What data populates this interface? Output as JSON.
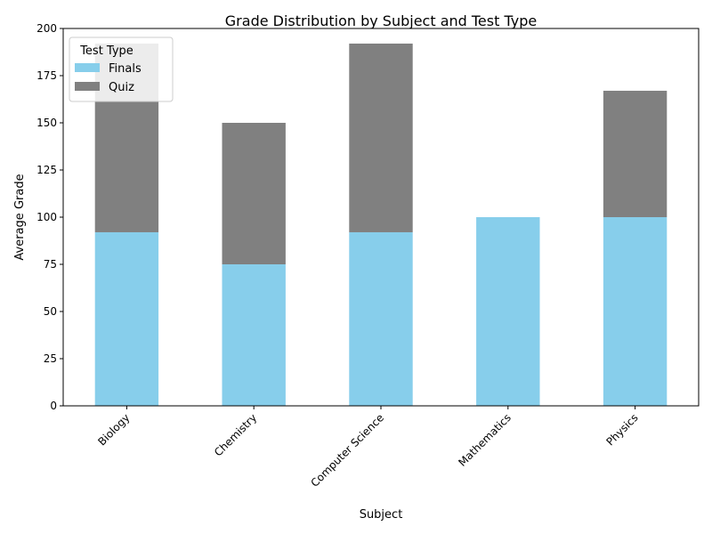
{
  "chart_data": {
    "type": "bar",
    "stacked": true,
    "title": "Grade Distribution by Subject and Test Type",
    "xlabel": "Subject",
    "ylabel": "Average Grade",
    "categories": [
      "Biology",
      "Chemistry",
      "Computer Science",
      "Mathematics",
      "Physics"
    ],
    "series": [
      {
        "name": "Finals",
        "values": [
          92,
          75,
          92,
          100,
          100
        ],
        "color": "#87ceeb"
      },
      {
        "name": "Quiz",
        "values": [
          100,
          75,
          100,
          0,
          67
        ],
        "color": "#808080"
      }
    ],
    "ylim": [
      0,
      200
    ],
    "yticks": [
      0,
      25,
      50,
      75,
      100,
      125,
      150,
      175,
      200
    ],
    "grid": false,
    "legend": {
      "title": "Test Type",
      "placement": "top-left"
    }
  }
}
